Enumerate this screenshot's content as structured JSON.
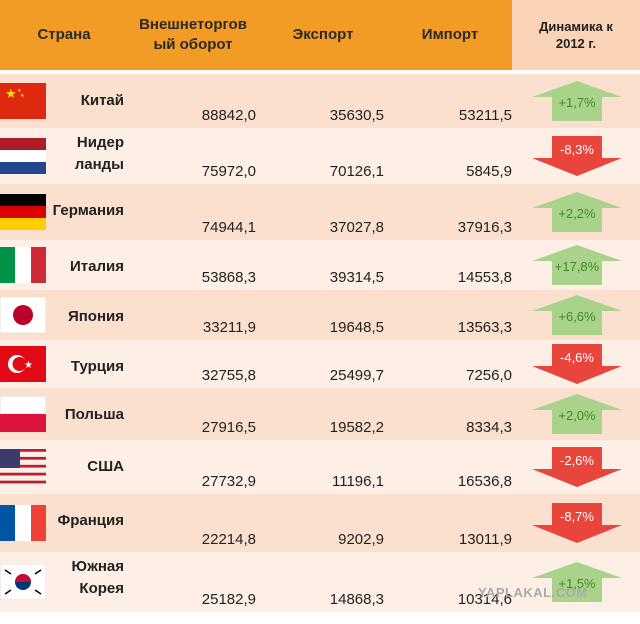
{
  "headers": {
    "country": "Страна",
    "turnover": "Внешнеторгов\nый оборот",
    "export": "Экспорт",
    "import": "Импорт",
    "dynamics": "Динамика к\n2012 г."
  },
  "rows": [
    {
      "country": "Китай",
      "turnover": "88842,0",
      "export": "35630,5",
      "import": "53211,5",
      "dynamics": "+1,7%",
      "direction": "up",
      "flag": "china"
    },
    {
      "country": "Нидер\nланды",
      "turnover": "75972,0",
      "export": "70126,1",
      "import": "5845,9",
      "dynamics": "-8,3%",
      "direction": "down",
      "flag": "netherlands"
    },
    {
      "country": "Германия",
      "turnover": "74944,1",
      "export": "37027,8",
      "import": "37916,3",
      "dynamics": "+2,2%",
      "direction": "up",
      "flag": "germany"
    },
    {
      "country": "Италия",
      "turnover": "53868,3",
      "export": "39314,5",
      "import": "14553,8",
      "dynamics": "+17,8%",
      "direction": "up",
      "flag": "italy"
    },
    {
      "country": "Япония",
      "turnover": "33211,9",
      "export": "19648,5",
      "import": "13563,3",
      "dynamics": "+6,6%",
      "direction": "up",
      "flag": "japan"
    },
    {
      "country": "Турция",
      "turnover": "32755,8",
      "export": "25499,7",
      "import": "7256,0",
      "dynamics": "-4,6%",
      "direction": "down",
      "flag": "turkey"
    },
    {
      "country": "Польша",
      "turnover": "27916,5",
      "export": "19582,2",
      "import": "8334,3",
      "dynamics": "+2,0%",
      "direction": "up",
      "flag": "poland"
    },
    {
      "country": "США",
      "turnover": "27732,9",
      "export": "11196,1",
      "import": "16536,8",
      "dynamics": "-2,6%",
      "direction": "down",
      "flag": "usa"
    },
    {
      "country": "Франция",
      "turnover": "22214,8",
      "export": "9202,9",
      "import": "13011,9",
      "dynamics": "-8,7%",
      "direction": "down",
      "flag": "france"
    },
    {
      "country": "Южная\nКорея",
      "turnover": "25182,9",
      "export": "14868,3",
      "import": "10314,6",
      "dynamics": "+1,5%",
      "direction": "up",
      "flag": "korea"
    }
  ],
  "colors": {
    "header_band": "#f29b25",
    "header_dynamics": "#fbd3b6",
    "up_arrow": "#a9d38a",
    "up_text": "#3f8a2a",
    "down_arrow": "#e8463c",
    "down_text": "#ffffff"
  },
  "watermark": "YAPLAKAL.COM"
}
